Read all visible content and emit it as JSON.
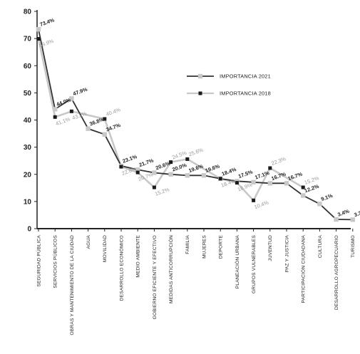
{
  "chart_data": {
    "type": "line",
    "title": "",
    "xlabel": "",
    "ylabel": "",
    "ylim": [
      0,
      80
    ],
    "yticks": [
      0,
      10,
      20,
      30,
      40,
      50,
      60,
      70,
      80
    ],
    "grid": false,
    "legend_position": "top-right",
    "categories": [
      "SEGURIDAD PÚBLICA",
      "SERVICIOS PÚBLICOS",
      "OBRAS Y MANTENIMIENTO DE LA CIUDAD",
      "AGUA",
      "MOVILIDAD",
      "DESARROLLO ECONÓMICO",
      "MEDIO AMBIENTE",
      "GOBIERNO EFICIENTE Y EFECTIVO",
      "MEDIDAS ANTICORRUPCIÓN",
      "FAMILIA",
      "MUJERES",
      "DEPORTE",
      "PLANEACIÓN URBANA",
      "GRUPOS VULNERABLES",
      "JUVENTUD",
      "PAZ Y JUSTICIA",
      "PARTICIPACIÓN CIUDADANA",
      "CULTURA",
      "DESARROLLO AGROPECUARIO",
      "TURISMO"
    ],
    "series": [
      {
        "name": "IMPORTANCIA 2021",
        "values": [
          73.4,
          44.0,
          47.9,
          36.8,
          34.7,
          23.1,
          21.7,
          20.6,
          20.0,
          19.6,
          19.6,
          18.4,
          17.5,
          17.1,
          16.7,
          16.7,
          12.2,
          9.1,
          3.4,
          3.3
        ],
        "labels": [
          "73.4%",
          "44.0%",
          "47.9%",
          "36.8%",
          "34.7%",
          "23.1%",
          "21.7%",
          "20.6%",
          "20.0%",
          "19.6%",
          "19.6%",
          "18.4%",
          "17.5%",
          "17.1%",
          "16.7%",
          "16.7%",
          "12.2%",
          "9.1%",
          "3.4%",
          "3.3%"
        ]
      },
      {
        "name": "IMPORTANCIA 2018",
        "values": [
          69.9,
          41.1,
          43.2,
          null,
          40.4,
          22.8,
          20.7,
          15.2,
          24.5,
          25.6,
          null,
          18.4,
          16.9,
          10.4,
          22.3,
          null,
          15.2,
          null,
          null,
          null
        ],
        "labels": [
          "69.9%",
          "41.1%",
          "43.2%",
          null,
          "40.4%",
          "22.8%",
          "20.7%",
          "15.2%",
          "24.5%",
          "25.6%",
          null,
          "18.4%",
          "16.9%",
          "10.4%",
          "22.3%",
          null,
          "15.2%",
          null,
          null,
          null
        ]
      }
    ],
    "colors": {
      "series_2021": "#333333",
      "series_2018": "#c8c8c8",
      "marker_2021": "#c8c8c8",
      "marker_2018": "#1a1a1a",
      "axis": "#222222"
    }
  }
}
